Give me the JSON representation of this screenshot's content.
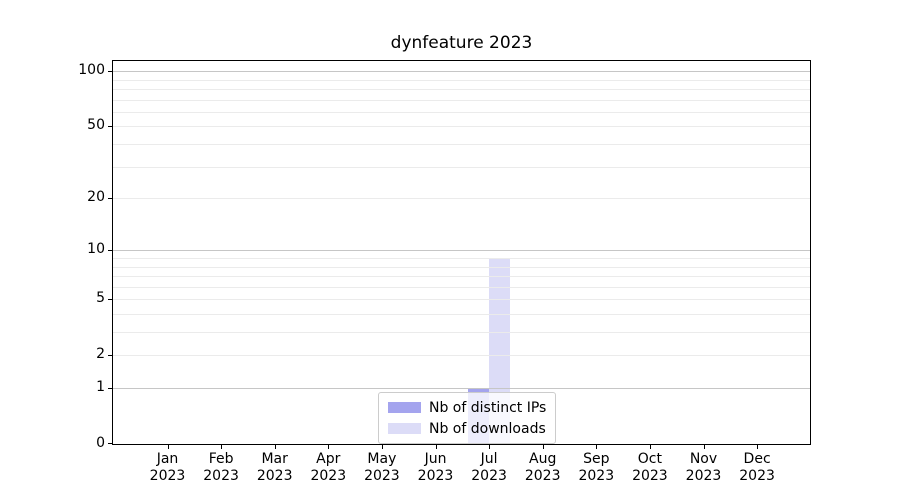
{
  "chart_data": {
    "type": "bar",
    "title": "dynfeature 2023",
    "categories": [
      {
        "month": "Jan",
        "year": "2023"
      },
      {
        "month": "Feb",
        "year": "2023"
      },
      {
        "month": "Mar",
        "year": "2023"
      },
      {
        "month": "Apr",
        "year": "2023"
      },
      {
        "month": "May",
        "year": "2023"
      },
      {
        "month": "Jun",
        "year": "2023"
      },
      {
        "month": "Jul",
        "year": "2023"
      },
      {
        "month": "Aug",
        "year": "2023"
      },
      {
        "month": "Sep",
        "year": "2023"
      },
      {
        "month": "Oct",
        "year": "2023"
      },
      {
        "month": "Nov",
        "year": "2023"
      },
      {
        "month": "Dec",
        "year": "2023"
      }
    ],
    "series": [
      {
        "name": "Nb of distinct IPs",
        "color": "#a4a4ee",
        "values": [
          0,
          0,
          0,
          0,
          0,
          0,
          1,
          0,
          0,
          0,
          0,
          0
        ]
      },
      {
        "name": "Nb of downloads",
        "color": "#dcdcf7",
        "values": [
          0,
          0,
          0,
          0,
          0,
          0,
          9,
          0,
          0,
          0,
          0,
          0
        ]
      }
    ],
    "y_axis": {
      "scale": "log10(1+value)",
      "labeled_ticks": [
        0,
        1,
        2,
        5,
        10,
        20,
        50,
        100
      ],
      "major_gridlines": [
        1,
        10,
        100
      ],
      "minor_gridlines": [
        2,
        3,
        4,
        5,
        6,
        7,
        8,
        9,
        20,
        30,
        40,
        50,
        60,
        70,
        80,
        90
      ],
      "ylim": [
        0,
        114
      ]
    },
    "grid": true,
    "legend_position": "lower center",
    "xlabel": "",
    "ylabel": ""
  }
}
